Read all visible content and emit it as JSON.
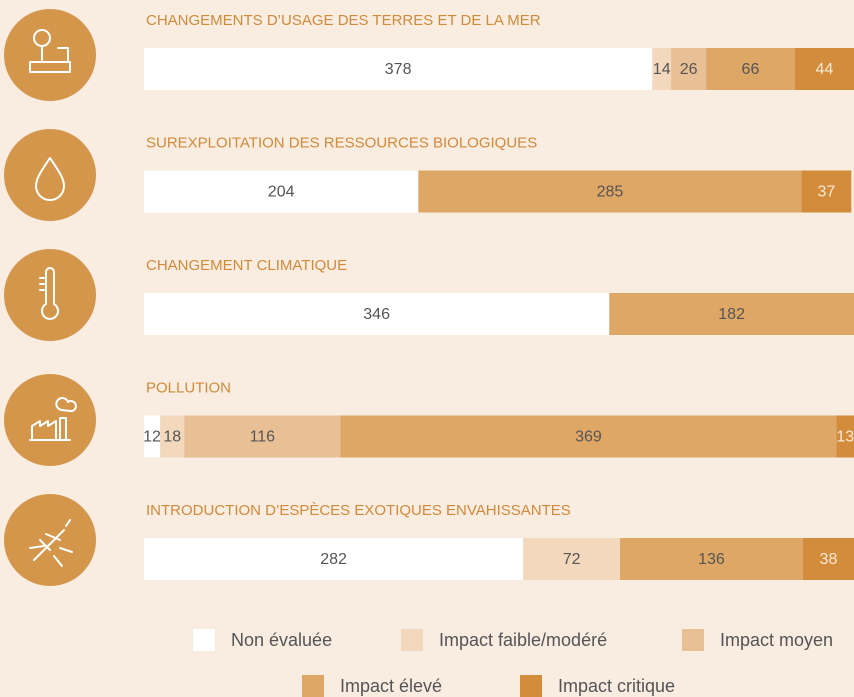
{
  "chart_data": {
    "type": "stacked-bar",
    "categories": [
      "CHANGEMENTS D’USAGE DES TERRES ET DE LA MER",
      "SUREXPLOITATION DES RESSOURCES BIOLOGIQUES",
      "CHANGEMENT CLIMATIQUE",
      "POLLUTION",
      "INTRODUCTION D’ESPÈCES EXOTIQUES ENVAHISSANTES"
    ],
    "series": [
      {
        "name": "Non évaluée",
        "color": "#ffffff",
        "values": [
          378,
          204,
          346,
          12,
          282
        ]
      },
      {
        "name": "Impact faible/modéré",
        "color": "#f3d8bd",
        "values": [
          14,
          null,
          null,
          18,
          72
        ]
      },
      {
        "name": "Impact moyen",
        "color": "#e9c096",
        "values": [
          26,
          null,
          null,
          116,
          null
        ]
      },
      {
        "name": "Impact élevé",
        "color": "#dfa766",
        "values": [
          66,
          285,
          182,
          369,
          136
        ]
      },
      {
        "name": "Impact critique",
        "color": "#d38c3c",
        "values": [
          44,
          37,
          null,
          13,
          38
        ]
      }
    ]
  }
}
